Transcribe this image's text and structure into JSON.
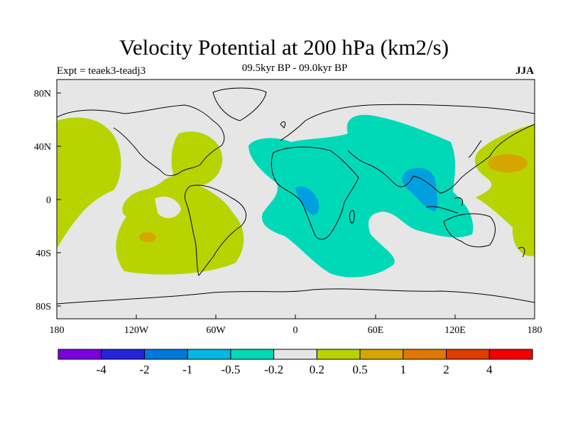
{
  "title": "Velocity Potential at 200 hPa (km2/s)",
  "subtitle": "09.5kyr BP - 09.0kyr BP",
  "experiment": "Expt = teaek3-teadj3",
  "season": "JJA",
  "map": {
    "lon_ticks": [
      "180",
      "120W",
      "60W",
      "0",
      "60E",
      "120E",
      "180"
    ],
    "lat_ticks": [
      "80N",
      "40N",
      "0",
      "40S",
      "80S"
    ],
    "colors": {
      "background": "#e6e6e6",
      "positive_weak": "#b8d400",
      "positive_mid": "#d6a600",
      "negative_weak": "#00d9b8",
      "negative_mid": "#00a0e0",
      "coast": "#000000"
    }
  },
  "colorbar": {
    "labels": [
      "-4",
      "-2",
      "-1",
      "-0.5",
      "-0.2",
      "0.2",
      "0.5",
      "1",
      "2",
      "4"
    ],
    "colors": [
      "#7a00dc",
      "#2424d8",
      "#0078dc",
      "#00b8e0",
      "#00d9b8",
      "#e6e6e6",
      "#b8d400",
      "#d6a600",
      "#e07800",
      "#e03c00",
      "#f00000"
    ]
  }
}
